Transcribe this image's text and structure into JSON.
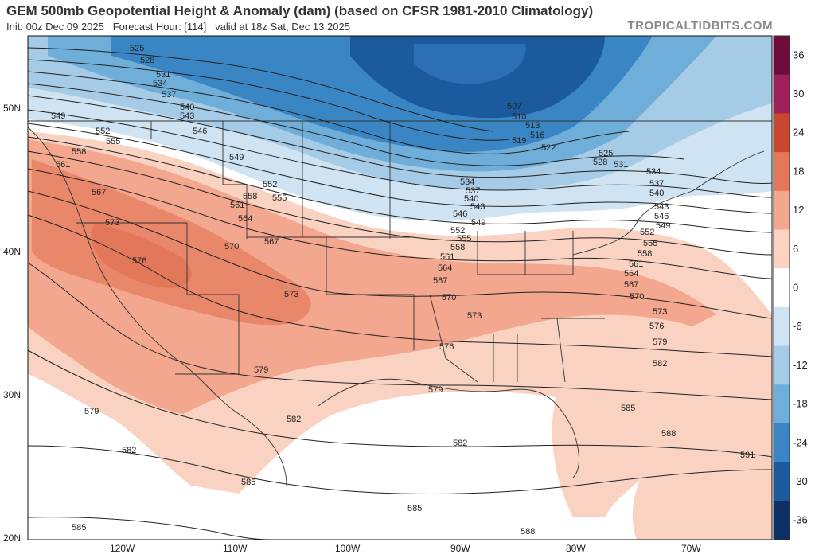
{
  "header": {
    "title": "GEM 500mb Geopotential Height & Anomaly (dam) (based on CFSR 1981-2010 Climatology)",
    "init": "Init: 00z Dec 09 2025",
    "forecast_hour": "Forecast Hour: [114]",
    "valid": "valid at 18z Sat, Dec 13 2025",
    "brand": "TROPICALTIDBITS.COM"
  },
  "map": {
    "lat_labels": [
      "50N",
      "40N",
      "30N",
      "20N"
    ],
    "lon_labels": [
      "120W",
      "110W",
      "100W",
      "90W",
      "80W",
      "70W"
    ],
    "height_labels": [
      "507",
      "510",
      "513",
      "516",
      "519",
      "522",
      "525",
      "528",
      "531",
      "534",
      "537",
      "540",
      "543",
      "546",
      "549",
      "552",
      "555",
      "558",
      "561",
      "564",
      "567",
      "570",
      "573",
      "576",
      "579",
      "582",
      "585",
      "588",
      "591"
    ],
    "colors": {
      "warm_anomaly": "#f2a78e",
      "cold_anomaly": "#3a86c4",
      "contour": "#222222"
    }
  },
  "colorbar": {
    "ticks": [
      "36",
      "30",
      "24",
      "18",
      "12",
      "6",
      "0",
      "-6",
      "-12",
      "-18",
      "-24",
      "-30",
      "-36"
    ],
    "colors": [
      "#6e0c3a",
      "#a0205a",
      "#c8472e",
      "#e2775a",
      "#f2a78e",
      "#f9d2c2",
      "#ffffff",
      "#cfe3f2",
      "#a6cbe6",
      "#6faed9",
      "#3a86c4",
      "#1c5a9e",
      "#0d2f63"
    ]
  }
}
